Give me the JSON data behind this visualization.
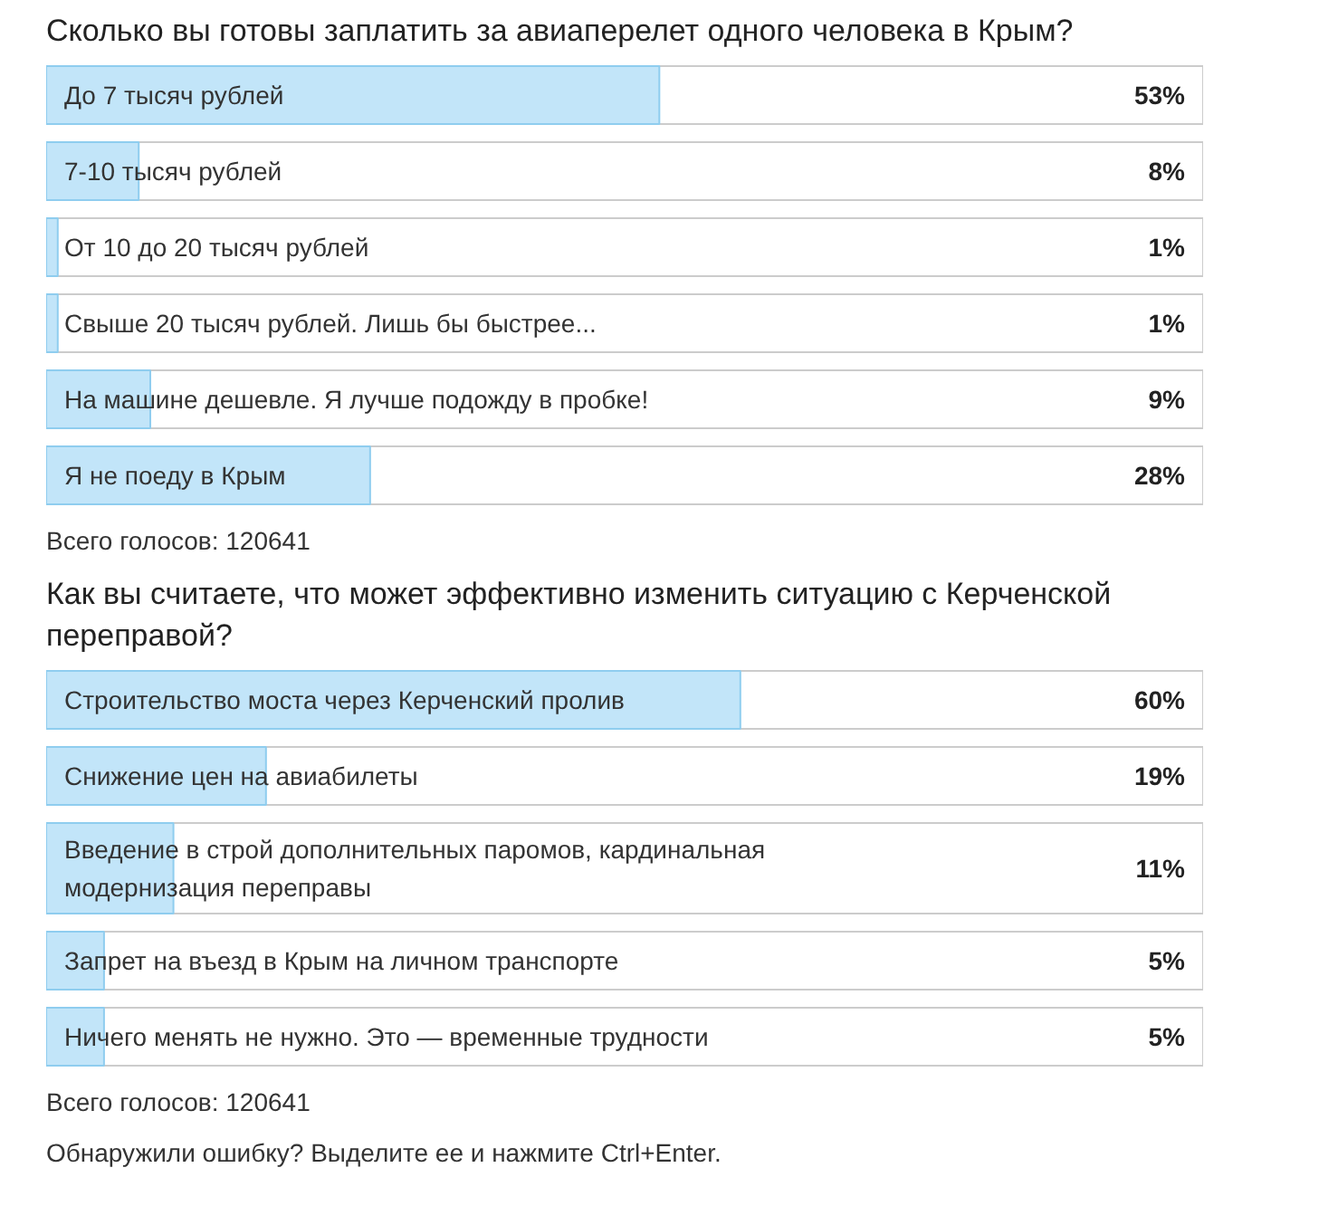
{
  "chart_data": [
    {
      "type": "bar",
      "orientation": "horizontal",
      "title": "Сколько вы готовы заплатить за авиаперелет одного человека в Крым?",
      "categories": [
        "До 7 тысяч рублей",
        "7-10 тысяч рублей",
        "От 10 до 20 тысяч рублей",
        "Свыше 20 тысяч рублей. Лишь бы быстрее...",
        "На машине дешевле. Я лучше подожду в пробке!",
        "Я не поеду в Крым"
      ],
      "values": [
        53,
        8,
        1,
        1,
        9,
        28
      ],
      "value_labels": [
        "53%",
        "8%",
        "1%",
        "1%",
        "9%",
        "28%"
      ],
      "color": "#c2e5f9",
      "xlim": [
        0,
        100
      ],
      "tick_labels": false,
      "annotations": [
        "Всего голосов: 120641"
      ]
    },
    {
      "type": "bar",
      "orientation": "horizontal",
      "title": "Как вы считаете, что может эффективно изменить ситуацию с Керченской переправой?",
      "categories": [
        "Строительство моста через Керченский пролив",
        "Снижение цен на авиабилеты",
        "Введение в строй дополнительных паромов, кардинальная модернизация переправы",
        "Запрет на въезд в Крым на личном транспорте",
        "Ничего менять не нужно. Это — временные трудности"
      ],
      "values": [
        60,
        19,
        11,
        5,
        5
      ],
      "value_labels": [
        "60%",
        "19%",
        "11%",
        "5%",
        "5%"
      ],
      "color": "#c2e5f9",
      "xlim": [
        0,
        100
      ],
      "tick_labels": false,
      "annotations": [
        "Всего голосов: 120641",
        "Обнаружили ошибку? Выделите ее и нажмите Ctrl+Enter."
      ]
    }
  ]
}
